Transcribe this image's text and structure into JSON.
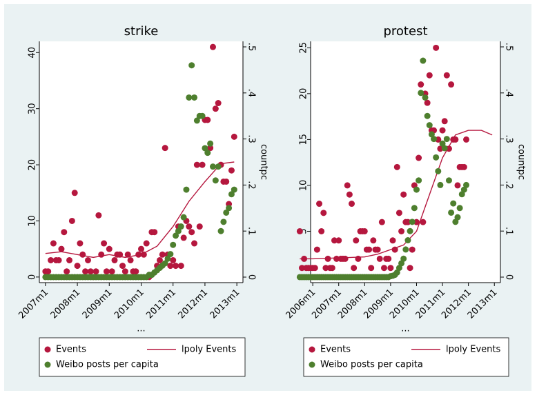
{
  "chart_data": [
    {
      "type": "scatter",
      "title": "strike",
      "x_label": "...",
      "y2_label": "countpc",
      "xlim": [
        561.7,
        638.3
      ],
      "xticks": [
        {
          "value": 564,
          "label": "2007m1"
        },
        {
          "value": 576,
          "label": "2008m1"
        },
        {
          "value": 588,
          "label": "2009m1"
        },
        {
          "value": 600,
          "label": "2010m1"
        },
        {
          "value": 612,
          "label": "2011m1"
        },
        {
          "value": 624,
          "label": "2012m1"
        },
        {
          "value": 636,
          "label": "2013m1"
        }
      ],
      "ylim": [
        -1,
        42
      ],
      "yticks": [
        0,
        10,
        20,
        30,
        40
      ],
      "y2lim": [
        -0.012,
        0.512
      ],
      "y2ticks": [
        0,
        {
          "value": 0.1,
          "label": ".1"
        },
        {
          "value": 0.2,
          "label": ".2"
        },
        {
          "value": 0.3,
          "label": ".3"
        },
        {
          "value": 0.4,
          "label": ".4"
        },
        {
          "value": 0.5,
          "label": ".5"
        }
      ],
      "series": [
        {
          "name": "Events",
          "type": "scatter",
          "color": "#b5173e",
          "x": [
            564,
            565,
            566,
            567,
            568,
            569,
            570,
            571,
            572,
            573,
            574,
            575,
            576,
            577,
            578,
            579,
            580,
            581,
            582,
            583,
            584,
            585,
            586,
            587,
            588,
            589,
            590,
            591,
            592,
            593,
            594,
            595,
            596,
            597,
            598,
            599,
            600,
            601,
            602,
            603,
            604,
            605,
            606,
            607,
            608,
            609,
            610,
            611,
            612,
            613,
            614,
            615,
            616,
            617,
            618,
            619,
            620,
            621,
            622,
            623,
            624,
            625,
            626,
            627,
            628,
            629,
            630,
            631,
            632,
            633,
            634,
            635
          ],
          "values": [
            1,
            1,
            3,
            6,
            3,
            3,
            5,
            8,
            1,
            3,
            10,
            15,
            2,
            6,
            4,
            1,
            3,
            1,
            0,
            1,
            11,
            4,
            6,
            1,
            5,
            1,
            3,
            4,
            4,
            2,
            1,
            4,
            3,
            1,
            1,
            4,
            5,
            4,
            6,
            0,
            8,
            8,
            2,
            3,
            4,
            23,
            4,
            2,
            3,
            2,
            9,
            2,
            7,
            10,
            9,
            8,
            6,
            20,
            9,
            20,
            28,
            28,
            23,
            41,
            30,
            31,
            20,
            17,
            17,
            13,
            19,
            25
          ]
        },
        {
          "name": "lpoly Events",
          "type": "line",
          "color": "#b5173e",
          "x": [
            564,
            570,
            576,
            582,
            588,
            594,
            600,
            606,
            612,
            618,
            624,
            630,
            635
          ],
          "values": [
            4.2,
            4.5,
            4.0,
            3.5,
            4.0,
            3.5,
            4.0,
            5.5,
            9.0,
            13.5,
            17.0,
            20.2,
            20.5
          ]
        },
        {
          "name": "Weibo posts per capita",
          "type": "scatter",
          "axis": "y2",
          "color": "#4e7f2e",
          "x": [
            564,
            565,
            566,
            567,
            568,
            569,
            570,
            571,
            572,
            573,
            574,
            575,
            576,
            577,
            578,
            579,
            580,
            581,
            582,
            583,
            584,
            585,
            586,
            587,
            588,
            589,
            590,
            591,
            592,
            593,
            594,
            595,
            596,
            597,
            598,
            599,
            600,
            601,
            602,
            603,
            604,
            605,
            606,
            607,
            608,
            609,
            610,
            611,
            612,
            613,
            614,
            615,
            616,
            617,
            618,
            619,
            620,
            621,
            622,
            623,
            624,
            625,
            626,
            627,
            628,
            629,
            630,
            631,
            632,
            633,
            634,
            635
          ],
          "values": [
            0,
            0,
            0,
            0,
            0,
            0,
            0,
            0,
            0,
            0,
            0,
            0,
            0,
            0,
            0,
            0,
            0,
            0,
            0,
            0,
            0,
            0,
            0,
            0,
            0,
            0,
            0,
            0,
            0,
            0,
            0,
            0,
            0,
            0,
            0,
            0,
            0,
            0,
            0,
            0.005,
            0.005,
            0.01,
            0.015,
            0.02,
            0.025,
            0.03,
            0.04,
            0.05,
            0.07,
            0.09,
            0.1,
            0.11,
            0.13,
            0.19,
            0.39,
            0.46,
            0.39,
            0.34,
            0.35,
            0.35,
            0.28,
            0.27,
            0.29,
            0.24,
            0.21,
            0.24,
            0.1,
            0.12,
            0.14,
            0.15,
            0.18,
            0.19
          ]
        }
      ]
    },
    {
      "type": "scatter",
      "title": "protest",
      "x_label": "...",
      "y2_label": "countpc",
      "xlim": [
        551,
        638.8
      ],
      "xticks": [
        {
          "value": 552,
          "label": "2006m1"
        },
        {
          "value": 564,
          "label": "2007m1"
        },
        {
          "value": 576,
          "label": "2008m1"
        },
        {
          "value": 588,
          "label": "2009m1"
        },
        {
          "value": 600,
          "label": "2010m1"
        },
        {
          "value": 612,
          "label": "2011m1"
        },
        {
          "value": 624,
          "label": "2012m1"
        },
        {
          "value": 636,
          "label": "2013m1"
        }
      ],
      "ylim": [
        -0.6,
        25.7
      ],
      "yticks": [
        0,
        5,
        10,
        15,
        20,
        25
      ],
      "y2lim": [
        -0.012,
        0.512
      ],
      "y2ticks": [
        0,
        {
          "value": 0.1,
          "label": ".1"
        },
        {
          "value": 0.2,
          "label": ".2"
        },
        {
          "value": 0.3,
          "label": ".3"
        },
        {
          "value": 0.4,
          "label": ".4"
        },
        {
          "value": 0.5,
          "label": ".5"
        }
      ],
      "series": [
        {
          "name": "Events",
          "type": "scatter",
          "color": "#b5173e",
          "x": [
            546,
            547,
            548,
            549,
            550,
            551,
            552,
            553,
            554,
            555,
            556,
            557,
            558,
            559,
            560,
            561,
            562,
            563,
            564,
            565,
            566,
            567,
            568,
            569,
            570,
            571,
            572,
            573,
            574,
            575,
            576,
            577,
            578,
            579,
            580,
            581,
            582,
            583,
            584,
            585,
            586,
            587,
            588,
            589,
            590,
            591,
            592,
            593,
            594,
            595,
            596,
            597,
            598,
            599,
            600,
            601,
            602,
            603,
            604,
            605,
            606,
            607,
            608,
            609,
            610,
            611,
            612,
            613,
            614,
            615,
            616,
            617,
            618,
            619,
            620,
            621,
            622,
            623
          ],
          "values": [
            5,
            1,
            2,
            1,
            1,
            1,
            1,
            1,
            3,
            8,
            5,
            7,
            1,
            2,
            1,
            1,
            4,
            2,
            4,
            2,
            2,
            2,
            10,
            9,
            8,
            1,
            4,
            2,
            5,
            5,
            5,
            3,
            3,
            1,
            4,
            3,
            3,
            2,
            6,
            1,
            2,
            2,
            1,
            4,
            3,
            12,
            7,
            5,
            9,
            6,
            6,
            1,
            3,
            10,
            6,
            13,
            21,
            6,
            20,
            19,
            22,
            16,
            16,
            25,
            15,
            14,
            16,
            17,
            22,
            14,
            21,
            15,
            15,
            10,
            12,
            12,
            12,
            15
          ]
        },
        {
          "name": "lpoly Events",
          "type": "line",
          "color": "#b5173e",
          "x": [
            546,
            552,
            564,
            576,
            582,
            588,
            594,
            600,
            606,
            612,
            618,
            624,
            630,
            635
          ],
          "values": [
            2.0,
            2.0,
            2.1,
            2.2,
            2.5,
            3.0,
            3.5,
            5.0,
            9.0,
            13.0,
            15.5,
            16.0,
            16.0,
            15.5
          ]
        },
        {
          "name": "Weibo posts per capita",
          "type": "scatter",
          "axis": "y2",
          "color": "#4e7f2e",
          "x": [
            546,
            547,
            548,
            549,
            550,
            551,
            552,
            553,
            554,
            555,
            556,
            557,
            558,
            559,
            560,
            561,
            562,
            563,
            564,
            565,
            566,
            567,
            568,
            569,
            570,
            571,
            572,
            573,
            574,
            575,
            576,
            577,
            578,
            579,
            580,
            581,
            582,
            583,
            584,
            585,
            586,
            587,
            588,
            589,
            590,
            591,
            592,
            593,
            594,
            595,
            596,
            597,
            598,
            599,
            600,
            601,
            602,
            603,
            604,
            605,
            606,
            607,
            608,
            609,
            610,
            611,
            612,
            613,
            614,
            615,
            616,
            617,
            618,
            619,
            620,
            621,
            622,
            623
          ],
          "values": [
            0,
            0,
            0,
            0,
            0,
            0,
            0,
            0,
            0,
            0,
            0,
            0,
            0,
            0,
            0,
            0,
            0,
            0,
            0,
            0,
            0,
            0,
            0,
            0,
            0,
            0,
            0,
            0,
            0,
            0,
            0,
            0,
            0,
            0,
            0,
            0,
            0,
            0,
            0,
            0,
            0,
            0,
            0.002,
            0.003,
            0.005,
            0.01,
            0.02,
            0.03,
            0.04,
            0.06,
            0.08,
            0.1,
            0.12,
            0.15,
            0.19,
            0.21,
            0.4,
            0.47,
            0.39,
            0.35,
            0.33,
            0.31,
            0.3,
            0.26,
            0.23,
            0.2,
            0.29,
            0.28,
            0.3,
            0.21,
            0.14,
            0.16,
            0.12,
            0.13,
            0.15,
            0.18,
            0.19,
            0.2
          ]
        }
      ]
    }
  ]
}
